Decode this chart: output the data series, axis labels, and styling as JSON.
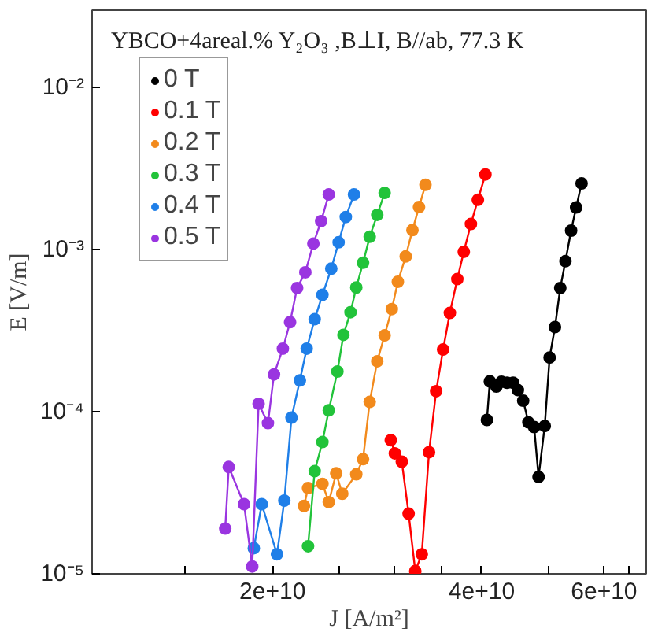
{
  "chart_data": {
    "type": "line",
    "title": "YBCO+4areal.% Y₂O₃ ,B⊥I, B//ab, 77.3 K",
    "xlabel": "J [A/m²]",
    "ylabel": "E [V/m]",
    "log": "xy",
    "grid": false,
    "legend": "top left",
    "marker": "circle",
    "line_style": "solid",
    "xlim": [
      11000000000.0,
      69000000000.0
    ],
    "ylim": [
      1e-05,
      0.03
    ],
    "xticks": [
      {
        "value": 15000000000.0,
        "label": null
      },
      {
        "value": 20000000000.0,
        "label": "2e+10"
      },
      {
        "value": 25000000000.0,
        "label": null
      },
      {
        "value": 30000000000.0,
        "label": null
      },
      {
        "value": 35000000000.0,
        "label": null
      },
      {
        "value": 40000000000.0,
        "label": "4e+10"
      },
      {
        "value": 50000000000.0,
        "label": null
      },
      {
        "value": 60000000000.0,
        "label": "6e+10"
      },
      {
        "value": 65000000000.0,
        "label": null
      }
    ],
    "yticks": [
      {
        "value": 1e-05,
        "label": "10⁻⁵"
      },
      {
        "value": 0.0001,
        "label": "10⁻⁴"
      },
      {
        "value": 0.001,
        "label": "10⁻³"
      },
      {
        "value": 0.01,
        "label": "10⁻²"
      }
    ],
    "series": [
      {
        "name": "0 T",
        "color": "#000000",
        "x": [
          40700000000.0,
          41100000000.0,
          42000000000.0,
          42700000000.0,
          43500000000.0,
          44400000000.0,
          45100000000.0,
          45900000000.0,
          46700000000.0,
          47600000000.0,
          48300000000.0,
          49300000000.0,
          50100000000.0,
          51000000000.0,
          51900000000.0,
          52800000000.0,
          53800000000.0,
          54700000000.0,
          55700000000.0
        ],
        "values": [
          8.9e-05,
          0.000154,
          0.000143,
          0.000153,
          0.000151,
          0.000151,
          0.000136,
          0.000117,
          8.6e-05,
          8.05e-05,
          3.96e-05,
          8.17e-05,
          0.000216,
          0.000333,
          0.00058,
          0.000849,
          0.00131,
          0.00182,
          0.00256
        ]
      },
      {
        "name": "0.1 T",
        "color": "#ff0000",
        "x": [
          29600000000.0,
          30000000000.0,
          30700000000.0,
          31400000000.0,
          32100000000.0,
          32800000000.0,
          33600000000.0,
          34400000000.0,
          35200000000.0,
          36000000000.0,
          36900000000.0,
          37700000000.0,
          38600000000.0,
          39500000000.0,
          40500000000.0
        ],
        "values": [
          6.68e-05,
          5.54e-05,
          4.92e-05,
          2.35e-05,
          1.04e-05,
          1.32e-05,
          5.63e-05,
          0.000134,
          0.000242,
          0.000407,
          0.000658,
          0.00097,
          0.00144,
          0.00203,
          0.00291
        ]
      },
      {
        "name": "0.2 T",
        "color": "#f28a1c",
        "x": [
          22200000000.0,
          22500000000.0,
          23600000000.0,
          24100000000.0,
          24700000000.0,
          25200000000.0,
          26400000000.0,
          27000000000.0,
          27600000000.0,
          28300000000.0,
          29000000000.0,
          29700000000.0,
          30300000000.0,
          31100000000.0,
          31800000000.0,
          32500000000.0,
          33200000000.0
        ],
        "values": [
          2.62e-05,
          3.38e-05,
          3.59e-05,
          2.77e-05,
          4.17e-05,
          3.12e-05,
          4.11e-05,
          5.1e-05,
          0.000115,
          0.000205,
          0.000296,
          0.00043,
          0.000634,
          0.000908,
          0.00132,
          0.00183,
          0.00251
        ]
      },
      {
        "name": "0.3 T",
        "color": "#22c33a",
        "x": [
          22500000000.0,
          23000000000.0,
          23600000000.0,
          24100000000.0,
          24800000000.0,
          25300000000.0,
          25900000000.0,
          26400000000.0,
          27000000000.0,
          27600000000.0,
          28300000000.0,
          29000000000.0
        ],
        "values": [
          1.48e-05,
          4.3e-05,
          6.5e-05,
          0.000102,
          0.000177,
          0.000298,
          0.000411,
          0.000584,
          0.00083,
          0.0012,
          0.00164,
          0.00224
        ]
      },
      {
        "name": "0.4 T",
        "color": "#1f7fe8",
        "x": [
          18800000000.0,
          19300000000.0,
          20300000000.0,
          20800000000.0,
          21300000000.0,
          21900000000.0,
          22400000000.0,
          23000000000.0,
          23600000000.0,
          24300000000.0,
          24900000000.0,
          25500000000.0,
          26200000000.0
        ],
        "values": [
          1.44e-05,
          2.69e-05,
          1.32e-05,
          2.83e-05,
          9.2e-05,
          0.000156,
          0.000245,
          0.000372,
          0.000526,
          0.000763,
          0.00111,
          0.00159,
          0.00219
        ]
      },
      {
        "name": "0.5 T",
        "color": "#9a35e0",
        "x": [
          17100000000.0,
          17300000000.0,
          18200000000.0,
          18700000000.0,
          19100000000.0,
          19700000000.0,
          20100000000.0,
          20700000000.0,
          21200000000.0,
          21700000000.0,
          22300000000.0,
          22900000000.0,
          23500000000.0,
          24100000000.0
        ],
        "values": [
          1.9e-05,
          4.56e-05,
          2.69e-05,
          1.11e-05,
          0.000112,
          8.5e-05,
          0.00017,
          0.000245,
          0.000357,
          0.00058,
          0.000725,
          0.00109,
          0.0015,
          0.00219
        ]
      }
    ]
  }
}
